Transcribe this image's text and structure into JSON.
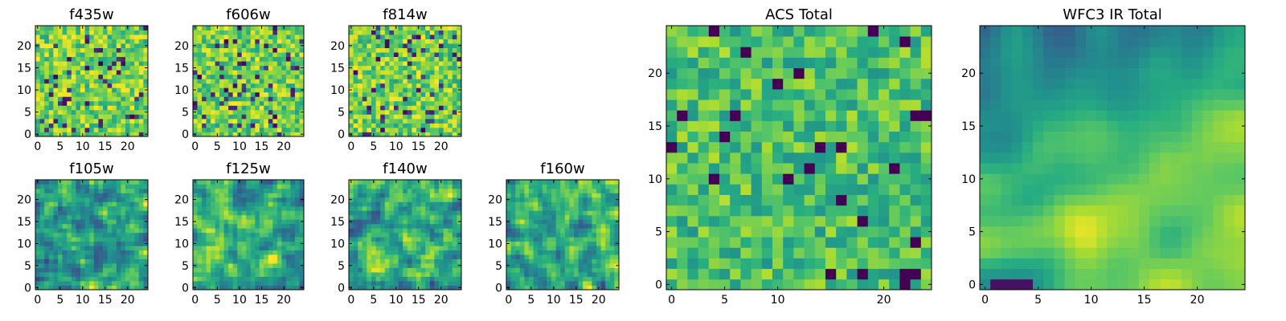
{
  "chart_data": [
    {
      "type": "heatmap",
      "title": "f435w",
      "rows": 25,
      "cols": 25,
      "xlim": [
        -0.5,
        24.5
      ],
      "ylim": [
        -0.5,
        24.5
      ],
      "xticks": [
        0,
        5,
        10,
        15,
        20
      ],
      "yticks": [
        0,
        5,
        10,
        15,
        20
      ],
      "colormap": "viridis",
      "texture": "fine-noise",
      "seed": 11
    },
    {
      "type": "heatmap",
      "title": "f606w",
      "rows": 25,
      "cols": 25,
      "xlim": [
        -0.5,
        24.5
      ],
      "ylim": [
        -0.5,
        24.5
      ],
      "xticks": [
        0,
        5,
        10,
        15,
        20
      ],
      "yticks": [
        0,
        5,
        10,
        15,
        20
      ],
      "colormap": "viridis",
      "texture": "fine-noise",
      "seed": 23
    },
    {
      "type": "heatmap",
      "title": "f814w",
      "rows": 25,
      "cols": 25,
      "xlim": [
        -0.5,
        24.5
      ],
      "ylim": [
        -0.5,
        24.5
      ],
      "xticks": [
        0,
        5,
        10,
        15,
        20
      ],
      "yticks": [
        0,
        5,
        10,
        15,
        20
      ],
      "colormap": "viridis",
      "texture": "fine-noise",
      "seed": 37
    },
    {
      "type": "heatmap",
      "title": "f105w",
      "rows": 25,
      "cols": 25,
      "xlim": [
        -0.5,
        24.5
      ],
      "ylim": [
        -0.5,
        24.5
      ],
      "xticks": [
        0,
        5,
        10,
        15,
        20
      ],
      "yticks": [
        0,
        5,
        10,
        15,
        20
      ],
      "colormap": "viridis",
      "texture": "smooth",
      "seed": 41
    },
    {
      "type": "heatmap",
      "title": "f125w",
      "rows": 25,
      "cols": 25,
      "xlim": [
        -0.5,
        24.5
      ],
      "ylim": [
        -0.5,
        24.5
      ],
      "xticks": [
        0,
        5,
        10,
        15,
        20
      ],
      "yticks": [
        0,
        5,
        10,
        15,
        20
      ],
      "colormap": "viridis",
      "texture": "smooth",
      "seed": 53
    },
    {
      "type": "heatmap",
      "title": "f140w",
      "rows": 25,
      "cols": 25,
      "xlim": [
        -0.5,
        24.5
      ],
      "ylim": [
        -0.5,
        24.5
      ],
      "xticks": [
        0,
        5,
        10,
        15,
        20
      ],
      "yticks": [
        0,
        5,
        10,
        15,
        20
      ],
      "colormap": "viridis",
      "texture": "smooth",
      "seed": 67
    },
    {
      "type": "heatmap",
      "title": "f160w",
      "rows": 25,
      "cols": 25,
      "xlim": [
        -0.5,
        24.5
      ],
      "ylim": [
        -0.5,
        24.5
      ],
      "xticks": [
        0,
        5,
        10,
        15,
        20
      ],
      "yticks": [
        0,
        5,
        10,
        15,
        20
      ],
      "colormap": "viridis",
      "texture": "smooth",
      "seed": 79
    },
    {
      "type": "heatmap",
      "title": "ACS Total",
      "rows": 25,
      "cols": 25,
      "xlim": [
        -0.5,
        24.5
      ],
      "ylim": [
        -0.5,
        24.5
      ],
      "xticks": [
        0,
        5,
        10,
        20
      ],
      "yticks": [
        0,
        5,
        10,
        15,
        20
      ],
      "colormap": "viridis",
      "texture": "coarse-noise",
      "seed": 83
    },
    {
      "type": "heatmap",
      "title": "WFC3 IR Total",
      "rows": 25,
      "cols": 25,
      "xlim": [
        -0.5,
        24.5
      ],
      "ylim": [
        -0.5,
        24.5
      ],
      "xticks": [
        0,
        5,
        10,
        15,
        20
      ],
      "yticks": [
        0,
        5,
        10,
        15,
        20
      ],
      "colormap": "viridis",
      "texture": "gradient",
      "seed": 97
    }
  ]
}
